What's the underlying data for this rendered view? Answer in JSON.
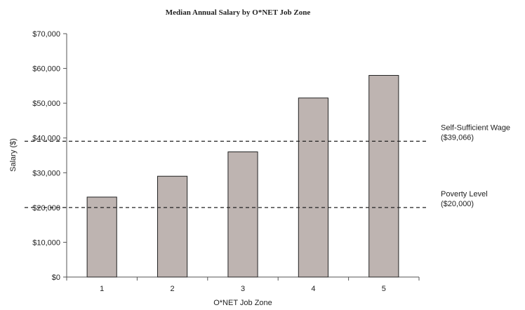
{
  "chart_data": {
    "type": "bar",
    "title": "Median Annual Salary by O*NET Job Zone",
    "xlabel": "O*NET Job Zone",
    "ylabel": "Salary ($)",
    "categories": [
      "1",
      "2",
      "3",
      "4",
      "5"
    ],
    "values": [
      23000,
      29000,
      36000,
      51500,
      58000
    ],
    "ylim": [
      0,
      70000
    ],
    "yticks": [
      0,
      10000,
      20000,
      30000,
      40000,
      50000,
      60000,
      70000
    ],
    "ytick_labels": [
      "$0",
      "$10,000",
      "$20,000",
      "$30,000",
      "$40,000",
      "$50,000",
      "$60,000",
      "$70,000"
    ],
    "grid": false,
    "legend": "none",
    "reference_lines": [
      {
        "value": 39066,
        "label": "Self-Sufficient Wage",
        "sublabel": "($39,066)"
      },
      {
        "value": 20000,
        "label": "Poverty Level",
        "sublabel": "($20,000)"
      }
    ],
    "colors": {
      "bar_fill": "#beb4b1",
      "bar_stroke": "#222222",
      "axis": "#555555",
      "reference_line": "#222222"
    }
  }
}
